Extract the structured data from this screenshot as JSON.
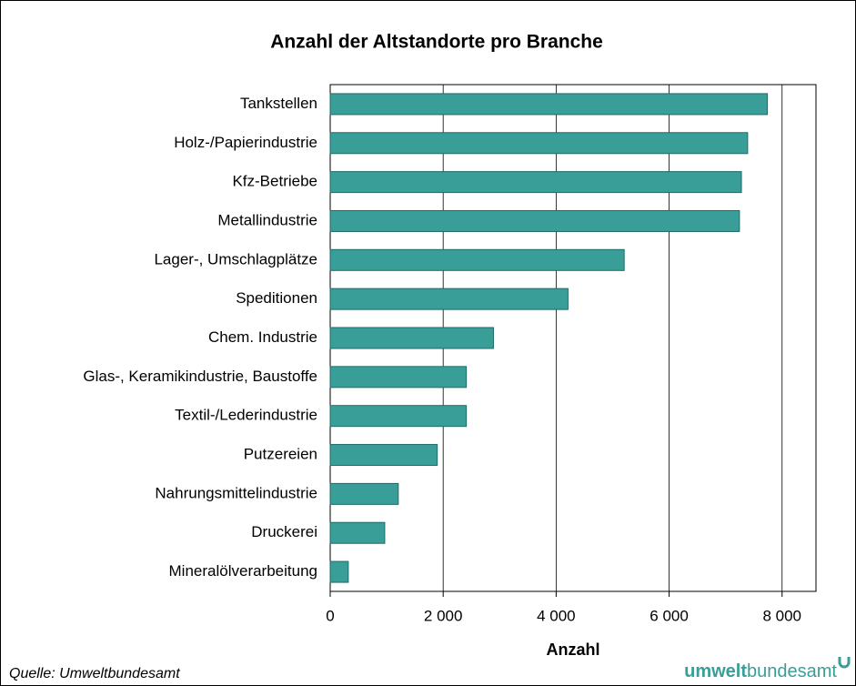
{
  "chart_data": {
    "type": "bar",
    "orientation": "horizontal",
    "title": "Anzahl der Altstandorte pro Branche",
    "x_label": "Anzahl",
    "source": "Quelle: Umweltbundesamt",
    "logo": {
      "bold": "umwelt",
      "regular": "bundesamt"
    },
    "categories": [
      "Tankstellen",
      "Holz-/Papierindustrie",
      "Kfz-Betriebe",
      "Metallindustrie",
      "Lager-, Umschlagplätze",
      "Speditionen",
      "Chem. Industrie",
      "Glas-, Keramikindustrie, Baustoffe",
      "Textil-/Lederindustrie",
      "Putzereien",
      "Nahrungsmittelindustrie",
      "Druckerei",
      "Mineralölverarbeitung"
    ],
    "values": [
      7740,
      7390,
      7280,
      7245,
      5205,
      4210,
      2890,
      2410,
      2410,
      1895,
      1205,
      965,
      320
    ],
    "color": "#3a9e98",
    "xlim": [
      0,
      8600
    ],
    "xticks": [
      0,
      {
        "value": 2000,
        "label": "2 000"
      },
      {
        "value": 4000,
        "label": "4 000"
      },
      {
        "value": 6000,
        "label": "6 000"
      },
      {
        "value": 8000,
        "label": "8 000"
      }
    ],
    "grid": true
  }
}
